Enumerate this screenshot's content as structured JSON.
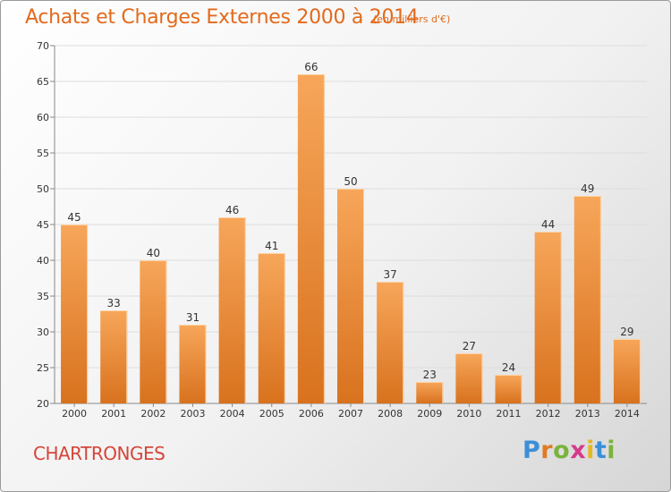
{
  "title": "Achats et Charges Externes 2000 à 2014",
  "subtitle": "(en milliers d'€)",
  "commune": "CHARTRONGES",
  "logo": {
    "letters": [
      "P",
      "r",
      "o",
      "x",
      "i",
      "t",
      "i"
    ],
    "colors": [
      "#3b8fd8",
      "#e07a24",
      "#7ab33c",
      "#d63b8a",
      "#e6b820",
      "#3b8fd8",
      "#7ab33c"
    ]
  },
  "colors": {
    "bar_top": "#f7a65a",
    "bar_bottom": "#d8721e",
    "bar_edge": "#ffd0a0",
    "text": "#333333",
    "grid": "#dddddd"
  },
  "chart_data": {
    "type": "bar",
    "categories": [
      "2000",
      "2001",
      "2002",
      "2003",
      "2004",
      "2005",
      "2006",
      "2007",
      "2008",
      "2009",
      "2010",
      "2011",
      "2012",
      "2013",
      "2014"
    ],
    "values": [
      45,
      33,
      40,
      31,
      46,
      41,
      66,
      50,
      37,
      23,
      27,
      24,
      44,
      49,
      29
    ],
    "ylim": [
      20,
      70
    ],
    "yticks": [
      20,
      25,
      30,
      35,
      40,
      45,
      50,
      55,
      60,
      65,
      70
    ],
    "grid": true
  }
}
